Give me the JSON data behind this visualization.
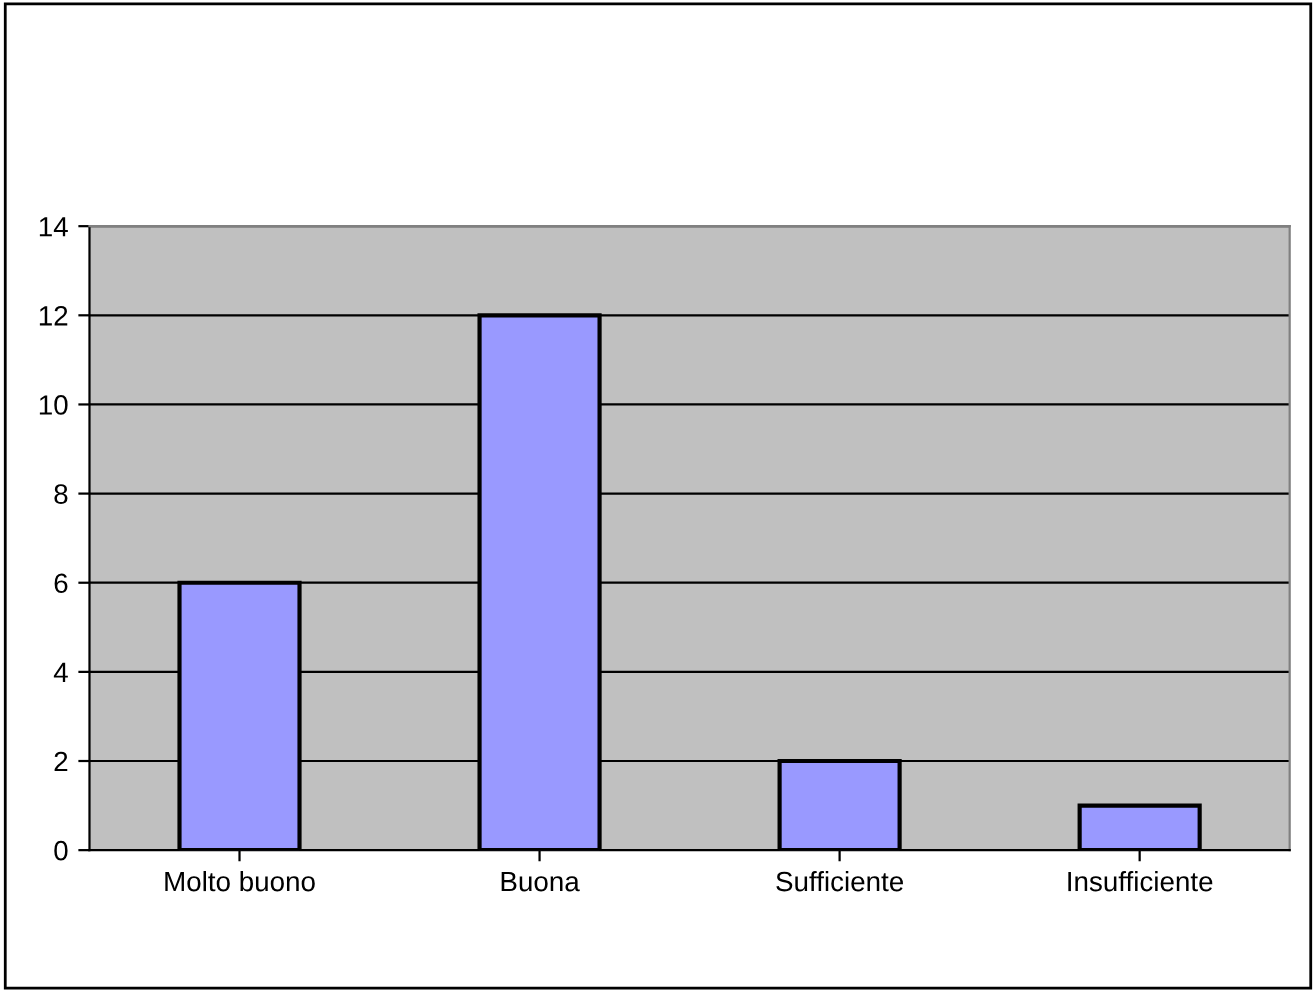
{
  "chart_data": {
    "type": "bar",
    "categories": [
      "Molto buono",
      "Buona",
      "Sufficiente",
      "Insufficiente"
    ],
    "values": [
      6,
      12,
      2,
      1
    ],
    "color": "#9999ff",
    "ylim": [
      0,
      14
    ],
    "yticks": [
      0,
      2,
      4,
      6,
      8,
      10,
      12,
      14
    ],
    "grid": "y"
  }
}
